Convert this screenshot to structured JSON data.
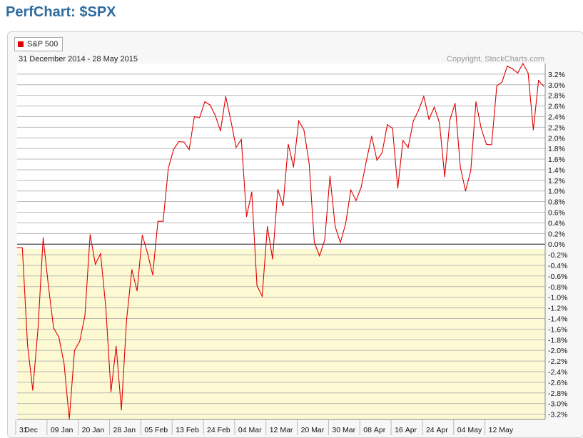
{
  "page": {
    "title": "PerfChart: $SPX"
  },
  "chart_data": {
    "type": "line",
    "date_range": "31 December 2014 - 28 May 2015",
    "copyright": "Copyright, StockCharts.com",
    "ylim": [
      -3.3,
      3.4
    ],
    "y_ticks": [
      3.2,
      3.0,
      2.8,
      2.6,
      2.4,
      2.2,
      2.0,
      1.8,
      1.6,
      1.4,
      1.2,
      1.0,
      0.8,
      0.6,
      0.4,
      0.2,
      0.0,
      -0.2,
      -0.4,
      -0.6,
      -0.8,
      -1.0,
      -1.2,
      -1.4,
      -1.6,
      -1.8,
      -2.0,
      -2.2,
      -2.4,
      -2.6,
      -2.8,
      -3.0,
      -3.2
    ],
    "x_tick_labels": [
      {
        "label": "31",
        "i": 0
      },
      {
        "label": "Dec",
        "i": 1
      },
      {
        "label": "09",
        "i": 6
      },
      {
        "label": "Jan",
        "i": 8
      },
      {
        "label": "20",
        "i": 12
      },
      {
        "label": "Jan",
        "i": 14
      },
      {
        "label": "28",
        "i": 18
      },
      {
        "label": "Jan",
        "i": 20
      },
      {
        "label": "05",
        "i": 24
      },
      {
        "label": "Feb",
        "i": 26
      },
      {
        "label": "13",
        "i": 30
      },
      {
        "label": "Feb",
        "i": 32
      },
      {
        "label": "24",
        "i": 36
      },
      {
        "label": "Feb",
        "i": 38
      },
      {
        "label": "04",
        "i": 42
      },
      {
        "label": "Mar",
        "i": 44
      },
      {
        "label": "12",
        "i": 48
      },
      {
        "label": "Mar",
        "i": 50
      },
      {
        "label": "20",
        "i": 54
      },
      {
        "label": "Mar",
        "i": 56
      },
      {
        "label": "30",
        "i": 60
      },
      {
        "label": "Mar",
        "i": 62
      },
      {
        "label": "08",
        "i": 66
      },
      {
        "label": "Apr",
        "i": 68
      },
      {
        "label": "16",
        "i": 72
      },
      {
        "label": "Apr",
        "i": 74
      },
      {
        "label": "24",
        "i": 78
      },
      {
        "label": "Apr",
        "i": 80
      },
      {
        "label": "04",
        "i": 84
      },
      {
        "label": "May",
        "i": 86
      },
      {
        "label": "12",
        "i": 90
      },
      {
        "label": "May",
        "i": 92
      }
    ],
    "series": [
      {
        "name": "S&P 500",
        "color": "#e00000",
        "values": [
          -0.07,
          -0.07,
          -1.9,
          -2.75,
          -1.6,
          0.12,
          -0.78,
          -1.58,
          -1.75,
          -2.25,
          -3.3,
          -2.0,
          -1.83,
          -1.35,
          0.18,
          -0.38,
          -0.18,
          -1.18,
          -2.78,
          -1.92,
          -3.12,
          -1.42,
          -0.48,
          -0.88,
          0.17,
          -0.17,
          -0.58,
          0.43,
          0.43,
          1.43,
          1.78,
          1.93,
          1.92,
          1.78,
          2.4,
          2.38,
          2.68,
          2.62,
          2.42,
          2.13,
          2.78,
          2.32,
          1.82,
          1.97,
          0.52,
          0.98,
          -0.78,
          -0.98,
          0.33,
          -0.28,
          1.03,
          0.72,
          1.88,
          1.45,
          2.32,
          2.15,
          1.52,
          0.03,
          -0.22,
          0.08,
          1.28,
          0.33,
          0.03,
          0.38,
          1.02,
          0.82,
          1.08,
          1.58,
          2.03,
          1.58,
          1.72,
          2.25,
          2.18,
          1.05,
          1.95,
          1.82,
          2.32,
          2.52,
          2.78,
          2.35,
          2.58,
          2.28,
          1.27,
          2.34,
          2.65,
          1.45,
          1.0,
          1.38,
          2.68,
          2.18,
          1.88,
          1.87,
          2.98,
          3.05,
          3.35,
          3.3,
          3.22,
          3.4,
          3.22,
          2.15,
          3.08,
          2.97
        ]
      }
    ]
  }
}
